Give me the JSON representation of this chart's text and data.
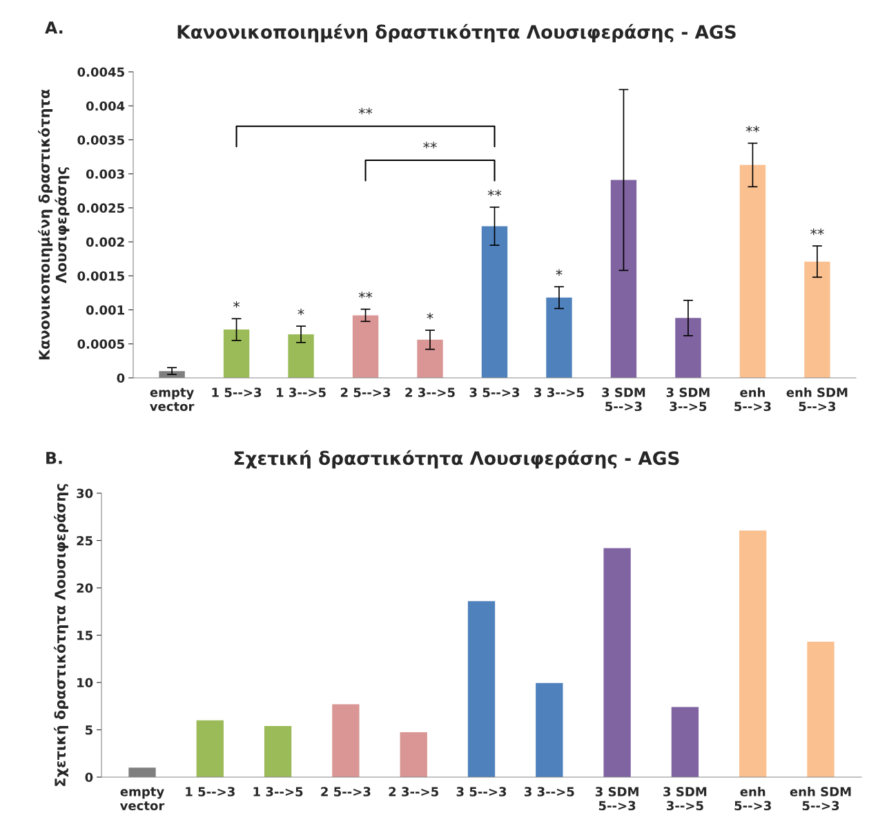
{
  "chart_data": [
    {
      "type": "bar",
      "title": "Κανονικοποιημένη δραστικότητα Λουσιφεράσης - AGS",
      "ylabel": "Κανονικοποιημένη δραστικότητα\nΛουσιφεράσης",
      "categories": [
        "empty\nvector",
        "1 5-->3",
        "1 3-->5",
        "2 5-->3",
        "2 3-->5",
        "3 5-->3",
        "3 3-->5",
        "3 SDM\n5-->3",
        "3 SDM\n3-->5",
        "enh\n5-->3",
        "enh SDM\n5-->3"
      ],
      "values": [
        0.0001,
        0.00071,
        0.00064,
        0.00092,
        0.00056,
        0.00223,
        0.00118,
        0.00291,
        0.00088,
        0.00313,
        0.00171
      ],
      "errors": [
        5e-05,
        0.00016,
        0.00012,
        9e-05,
        0.00014,
        0.00028,
        0.00016,
        0.00133,
        0.00026,
        0.00032,
        0.00023
      ],
      "colors": [
        "#7f7f7f",
        "#9bbb59",
        "#9bbb59",
        "#d99694",
        "#d99694",
        "#4f81bd",
        "#4f81bd",
        "#8064a2",
        "#8064a2",
        "#fac090",
        "#fac090"
      ],
      "ylim": [
        0,
        0.0045
      ],
      "yticks": [
        0,
        0.0005,
        0.001,
        0.0015,
        0.002,
        0.0025,
        0.003,
        0.0035,
        0.004,
        0.0045
      ],
      "grid": false,
      "annotations": [
        "A.",
        {
          "text": "*",
          "x": "1 5-->3",
          "y": 0.00087
        },
        {
          "text": "*",
          "x": "1 3-->5",
          "y": 0.00076
        },
        {
          "text": "**",
          "x": "2 5-->3",
          "y": 0.00101
        },
        {
          "text": "*",
          "x": "2 3-->5",
          "y": 0.0007
        },
        {
          "text": "**",
          "x": "3 5-->3",
          "y": 0.00251
        },
        {
          "text": "*",
          "x": "3 3-->5",
          "y": 0.00134
        },
        {
          "text": "**",
          "x": "enh\n5-->3",
          "y": 0.00345
        },
        {
          "text": "**",
          "x": "enh SDM\n5-->3",
          "y": 0.00194
        },
        "**",
        "**"
      ]
    },
    {
      "type": "bar",
      "title": "Σχετική δραστικότητα Λουσιφεράσης - AGS",
      "ylabel": "Σχετική δραστικότητα Λουσιφεράσης",
      "categories": [
        "empty\nvector",
        "1 5-->3",
        "1 3-->5",
        "2 5-->3",
        "2 3-->5",
        "3 5-->3",
        "3 3-->5",
        "3 SDM\n5-->3",
        "3 SDM\n3-->5",
        "enh\n5-->3",
        "enh SDM\n5-->3"
      ],
      "values": [
        1.0,
        6.0,
        5.4,
        7.7,
        4.75,
        18.6,
        9.95,
        24.2,
        7.4,
        26.05,
        14.3
      ],
      "colors": [
        "#7f7f7f",
        "#9bbb59",
        "#9bbb59",
        "#d99694",
        "#d99694",
        "#4f81bd",
        "#4f81bd",
        "#8064a2",
        "#8064a2",
        "#fac090",
        "#fac090"
      ],
      "ylim": [
        0,
        30
      ],
      "yticks": [
        0,
        5,
        10,
        15,
        20,
        25,
        30
      ],
      "grid": false,
      "annotations": [
        "B."
      ]
    }
  ]
}
